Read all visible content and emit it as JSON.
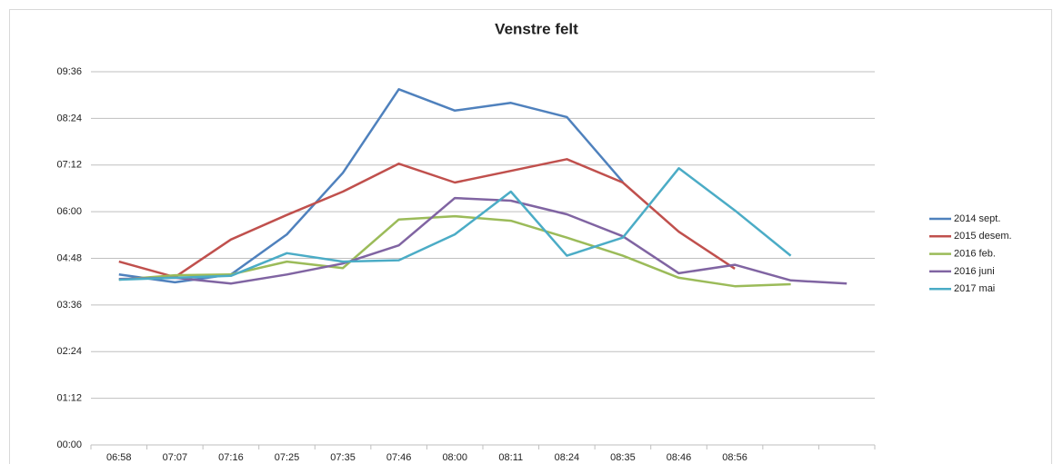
{
  "chart_data": {
    "type": "line",
    "title": "Venstre felt",
    "categories": [
      "06:58",
      "07:07",
      "07:16",
      "07:25",
      "07:35",
      "07:46",
      "08:00",
      "08:11",
      "08:24",
      "08:35",
      "08:46",
      "08:56",
      null,
      null
    ],
    "series": [
      {
        "name": "2014 sept.",
        "color": "#4f81bd",
        "values": [
          263,
          251,
          263,
          325,
          420,
          549,
          516,
          528,
          506,
          406,
          null,
          null,
          null,
          null
        ]
      },
      {
        "name": "2015 desem.",
        "color": "#c0504d",
        "values": [
          283,
          259,
          317,
          355,
          391,
          434,
          405,
          423,
          441,
          405,
          329,
          272,
          null,
          null
        ]
      },
      {
        "name": "2016 feb.",
        "color": "#9bbb59",
        "values": [
          255,
          262,
          263,
          283,
          273,
          348,
          353,
          346,
          320,
          292,
          258,
          245,
          248,
          null
        ]
      },
      {
        "name": "2016 juni",
        "color": "#8064a2",
        "values": [
          256,
          258,
          249,
          263,
          280,
          308,
          381,
          377,
          356,
          322,
          265,
          278,
          254,
          249
        ]
      },
      {
        "name": "2017 mai",
        "color": "#4bacc6",
        "values": [
          255,
          258,
          261,
          296,
          283,
          285,
          325,
          391,
          292,
          320,
          427,
          362,
          292,
          null
        ]
      }
    ],
    "ylim": [
      0,
      576
    ],
    "yticks": [
      {
        "value": 0,
        "label": "00:00"
      },
      {
        "value": 72,
        "label": "01:12"
      },
      {
        "value": 144,
        "label": "02:24"
      },
      {
        "value": 216,
        "label": "03:36"
      },
      {
        "value": 288,
        "label": "04:48"
      },
      {
        "value": 360,
        "label": "06:00"
      },
      {
        "value": 432,
        "label": "07:12"
      },
      {
        "value": 504,
        "label": "08:24"
      },
      {
        "value": 576,
        "label": "09:36"
      }
    ],
    "grid": true,
    "legend": "right"
  }
}
